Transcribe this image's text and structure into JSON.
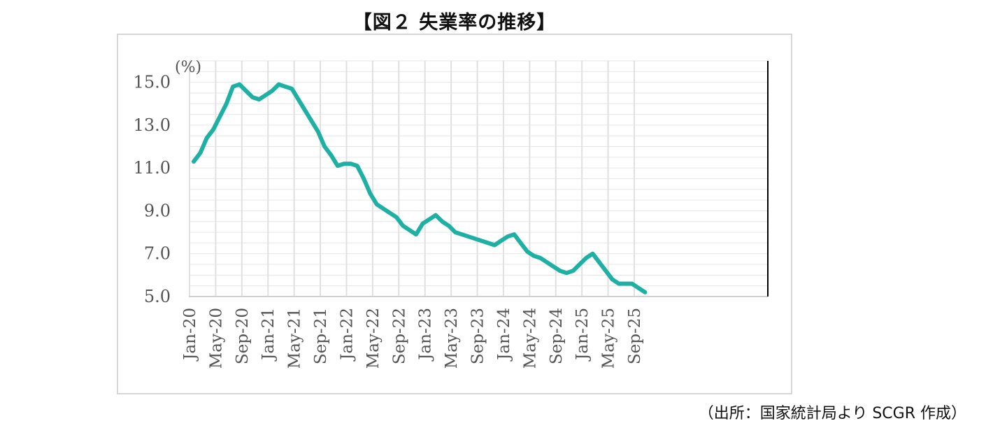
{
  "figure": {
    "title": "【図２ 失業率の推移】",
    "source": "（出所：国家統計局より SCGR 作成）"
  },
  "chart_data": {
    "type": "line",
    "title": "【図２ 失業率の推移】",
    "ylabel": "(%)",
    "xlabel": "",
    "ylim": [
      5.0,
      16.0
    ],
    "yticks": [
      "5.0",
      "7.0",
      "9.0",
      "11.0",
      "13.0",
      "15.0"
    ],
    "ytick_values": [
      5.0,
      7.0,
      9.0,
      11.0,
      13.0,
      15.0
    ],
    "xtick_labels": [
      "Jan-20",
      "May-20",
      "Sep-20",
      "Jan-21",
      "May-21",
      "Sep-21",
      "Jan-22",
      "May-22",
      "Sep-22",
      "Jan-23",
      "May-23",
      "Sep-23",
      "Jan-24",
      "May-24",
      "Sep-24",
      "Jan-25",
      "May-25",
      "Sep-25"
    ],
    "xtick_every": 4,
    "grid": true,
    "line_color": "#1fb0a4",
    "categories": [
      "Jan-20",
      "Feb-20",
      "Mar-20",
      "Apr-20",
      "May-20",
      "Jun-20",
      "Jul-20",
      "Aug-20",
      "Sep-20",
      "Oct-20",
      "Nov-20",
      "Dec-20",
      "Jan-21",
      "Feb-21",
      "Mar-21",
      "Apr-21",
      "May-21",
      "Jun-21",
      "Jul-21",
      "Aug-21",
      "Sep-21",
      "Oct-21",
      "Nov-21",
      "Dec-21",
      "Jan-22",
      "Feb-22",
      "Mar-22",
      "Apr-22",
      "May-22",
      "Jun-22",
      "Jul-22",
      "Aug-22",
      "Sep-22",
      "Oct-22",
      "Nov-22",
      "Dec-22",
      "Jan-23",
      "Feb-23",
      "Mar-23",
      "Apr-23",
      "May-23",
      "Jun-23",
      "Jul-23",
      "Aug-23",
      "Sep-23",
      "Oct-23",
      "Nov-23",
      "Dec-23",
      "Jan-24",
      "Feb-24",
      "Mar-24",
      "Apr-24",
      "May-24",
      "Jun-24",
      "Jul-24",
      "Aug-24",
      "Sep-24",
      "Oct-24",
      "Nov-24",
      "Dec-24",
      "Jan-25",
      "Feb-25",
      "Mar-25",
      "Apr-25",
      "May-25",
      "Jun-25",
      "Jul-25",
      "Aug-25",
      "Sep-25",
      "Oct-25"
    ],
    "series": [
      {
        "values": [
          11.3,
          11.7,
          12.4,
          12.8,
          13.4,
          14.0,
          14.8,
          14.9,
          14.6,
          14.3,
          14.2,
          14.4,
          14.6,
          14.9,
          14.8,
          14.7,
          14.2,
          13.7,
          13.2,
          12.7,
          12.0,
          11.6,
          11.1,
          11.2,
          11.2,
          11.1,
          10.5,
          9.8,
          9.3,
          9.1,
          8.9,
          8.7,
          8.3,
          8.1,
          7.9,
          8.4,
          8.6,
          8.8,
          8.5,
          8.3,
          8.0,
          7.9,
          7.8,
          7.7,
          7.6,
          7.5,
          7.4,
          7.6,
          7.8,
          7.9,
          7.5,
          7.1,
          6.9,
          6.8,
          6.6,
          6.4,
          6.2,
          6.1,
          6.2,
          6.5,
          6.8,
          7.0,
          6.6,
          6.2,
          5.8,
          5.6,
          5.6,
          5.6,
          5.4,
          5.2
        ]
      }
    ]
  }
}
